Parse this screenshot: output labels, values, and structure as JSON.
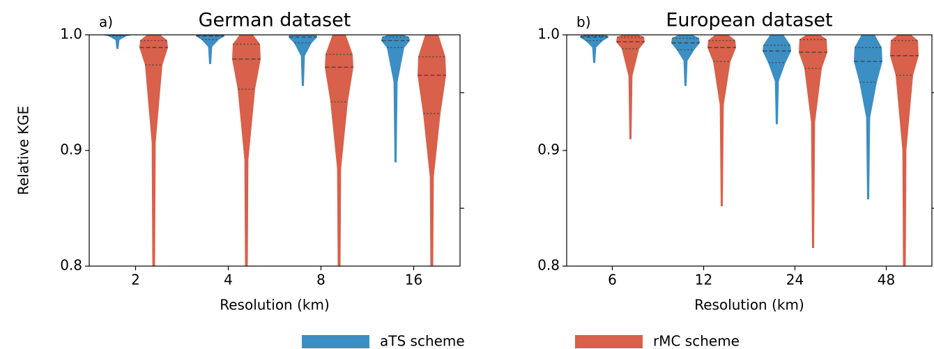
{
  "chart_data": [
    {
      "type": "violin",
      "panel_label": "a)",
      "title": "German dataset",
      "x_label": "Resolution (km)",
      "y_label": "Relative KGE",
      "categories": [
        "2",
        "4",
        "8",
        "16"
      ],
      "ylim": [
        0.8,
        1.0
      ],
      "yticks": [
        {
          "value": 0.8,
          "label": "0.8"
        },
        {
          "value": 0.9,
          "label": "0.9"
        },
        {
          "value": 1.0,
          "label": "1.0"
        }
      ],
      "minor_yticks": [
        0.85,
        0.95
      ],
      "series": [
        {
          "name": "aTS scheme",
          "color": "#3b8fc4",
          "min": [
            0.988,
            0.975,
            0.956,
            0.89
          ],
          "q1": [
            0.999,
            0.996,
            0.993,
            0.989
          ],
          "median": [
            1.0,
            0.999,
            0.998,
            0.995
          ],
          "q3": [
            1.0,
            1.0,
            1.0,
            0.998
          ],
          "max": [
            1.0,
            1.0,
            1.0,
            1.0
          ]
        },
        {
          "name": "rMC scheme",
          "color": "#d9604a",
          "min": [
            0.75,
            0.75,
            0.75,
            0.75
          ],
          "q1": [
            0.974,
            0.953,
            0.942,
            0.932
          ],
          "median": [
            0.989,
            0.979,
            0.972,
            0.965
          ],
          "q3": [
            0.995,
            0.992,
            0.983,
            0.981
          ],
          "max": [
            1.0,
            1.0,
            1.0,
            1.0
          ]
        }
      ]
    },
    {
      "type": "violin",
      "panel_label": "b)",
      "title": "European dataset",
      "x_label": "Resolution (km)",
      "categories": [
        "6",
        "12",
        "24",
        "48"
      ],
      "ylim": [
        0.8,
        1.0
      ],
      "yticks": [
        {
          "value": 0.8,
          "label": "0.8"
        },
        {
          "value": 0.9,
          "label": "0.9"
        },
        {
          "value": 1.0,
          "label": "1.0"
        }
      ],
      "minor_yticks": [
        0.85,
        0.95
      ],
      "series": [
        {
          "name": "aTS scheme",
          "color": "#3b8fc4",
          "min": [
            0.976,
            0.956,
            0.923,
            0.858
          ],
          "q1": [
            0.995,
            0.987,
            0.976,
            0.959
          ],
          "median": [
            0.998,
            0.993,
            0.986,
            0.977
          ],
          "q3": [
            0.999,
            0.997,
            0.991,
            0.989
          ],
          "max": [
            1.0,
            1.0,
            1.0,
            1.0
          ]
        },
        {
          "name": "rMC scheme",
          "color": "#d9604a",
          "min": [
            0.91,
            0.852,
            0.816,
            0.75
          ],
          "q1": [
            0.988,
            0.977,
            0.971,
            0.965
          ],
          "median": [
            0.994,
            0.989,
            0.985,
            0.982
          ],
          "q3": [
            0.998,
            0.995,
            0.996,
            0.995
          ],
          "max": [
            1.0,
            1.0,
            1.0,
            1.0
          ]
        }
      ]
    }
  ]
}
